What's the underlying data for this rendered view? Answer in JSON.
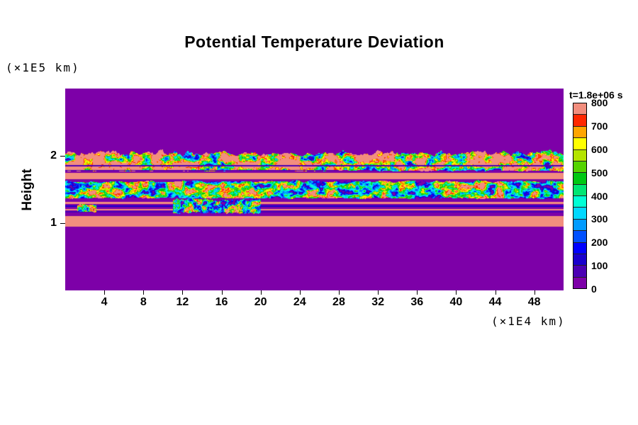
{
  "title": "Potential Temperature Deviation",
  "axes": {
    "ylabel": "Height",
    "y_unit": "(×1E5 km)",
    "x_unit": "(×1E4 km)"
  },
  "colorbar": {
    "label": "t=1.8e+06 s"
  },
  "chart_data": {
    "type": "heatmap",
    "title": "Potential Temperature Deviation",
    "xlabel": "(×1E4 km)",
    "ylabel": "Height",
    "y_unit_label": "(×1E5 km)",
    "time_annotation": "t=1.8e+06 s",
    "x_range": [
      0,
      51
    ],
    "y_range": [
      0,
      3
    ],
    "x_ticks": [
      4,
      8,
      12,
      16,
      20,
      24,
      28,
      32,
      36,
      40,
      44,
      48
    ],
    "y_ticks": [
      1,
      2
    ],
    "value_range": [
      0,
      800
    ],
    "colorbar_ticks": [
      0,
      100,
      200,
      300,
      400,
      500,
      600,
      700,
      800
    ],
    "background_value": 0,
    "grid": false,
    "legend_position": "right",
    "colormap": [
      "#7d00a8",
      "#4b00b4",
      "#1900cd",
      "#0000ff",
      "#0050ff",
      "#009bff",
      "#00d8ff",
      "#00ffd5",
      "#00e673",
      "#00c814",
      "#55d400",
      "#b4e400",
      "#ffff00",
      "#ffa500",
      "#ff2800",
      "#f28e7e"
    ],
    "bands": [
      {
        "name": "lower-inversion-sheet",
        "style": "solid",
        "y_from": 0.95,
        "y_to": 1.11,
        "value": 800
      },
      {
        "name": "streak-dark-low",
        "style": "solid",
        "y_from": 1.16,
        "y_to": 1.175,
        "value": 90
      },
      {
        "name": "streak-salmon-low",
        "style": "solid",
        "y_from": 1.185,
        "y_to": 1.215,
        "value": 800
      },
      {
        "name": "streak-dark-mid",
        "style": "solid",
        "y_from": 1.24,
        "y_to": 1.258,
        "value": 120
      },
      {
        "name": "streak-salmon-high",
        "style": "solid",
        "y_from": 1.285,
        "y_to": 1.315,
        "value": 800
      },
      {
        "name": "streak-turbulent-patch-left",
        "style": "turbulent",
        "x_from": 1.2,
        "x_to": 3.2,
        "y_from": 1.17,
        "y_to": 1.27,
        "base": 420,
        "amplitude": 480,
        "edge_wave": 0.03,
        "bottom_wave": 0.03,
        "noise_scale_x": 2.5,
        "noise_scale_y": 16
      },
      {
        "name": "streak-turbulent-patch-mid",
        "style": "turbulent",
        "x_from": 11,
        "x_to": 20,
        "y_from": 1.15,
        "y_to": 1.34,
        "base": 430,
        "amplitude": 520,
        "edge_wave": 0.05,
        "bottom_wave": 0.04,
        "noise_scale_x": 2.2,
        "noise_scale_y": 16
      },
      {
        "name": "mid-turbulent-band",
        "style": "turbulent",
        "y_from": 1.37,
        "y_to": 1.62,
        "base": 470,
        "amplitude": 540,
        "edge_wave": 0.03,
        "bottom_wave": 0.02,
        "noise_scale_x": 1.1,
        "noise_scale_y": 11
      },
      {
        "name": "upper-salmon-stripe",
        "style": "solid",
        "y_from": 1.65,
        "y_to": 1.745,
        "value": 800
      },
      {
        "name": "upper-turbulent-deck",
        "style": "turbulent",
        "y_from": 1.78,
        "y_to": 2.04,
        "base": 700,
        "amplitude": 640,
        "edge_wave": 0.07,
        "bottom_wave": 0.02,
        "noise_scale_x": 1.0,
        "noise_scale_y": 10
      },
      {
        "name": "upper-deck-bottom-lamina",
        "style": "solid",
        "y_from": 1.775,
        "y_to": 1.79,
        "value": 70,
        "x_from": 0,
        "x_to": 28
      },
      {
        "name": "upper-deck-dark-lamina",
        "style": "solid",
        "y_from": 1.845,
        "y_to": 1.862,
        "value": 70
      }
    ]
  }
}
